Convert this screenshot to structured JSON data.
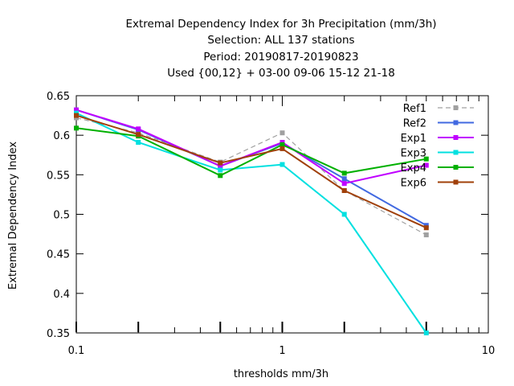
{
  "chart_data": {
    "type": "line",
    "title_lines": [
      "Extremal Dependency Index  for 3h Precipitation (mm/3h)",
      "Selection: ALL    137 stations",
      "Period: 20190817-20190823",
      "Used {00,12} + 03-00 09-06 15-12 21-18"
    ],
    "xlabel": "thresholds mm/3h",
    "ylabel": "Extremal Dependency Index",
    "x_scale": "log",
    "xlim": [
      0.1,
      10
    ],
    "ylim": [
      0.35,
      0.65
    ],
    "x_ticks": [
      0.1,
      1,
      10
    ],
    "x_tick_labels": [
      "0.1",
      "1",
      "10"
    ],
    "y_ticks": [
      0.35,
      0.4,
      0.45,
      0.5,
      0.55,
      0.6,
      0.65
    ],
    "y_tick_labels": [
      "0.35",
      "0.4",
      "0.45",
      "0.5",
      "0.55",
      "0.6",
      "0.65"
    ],
    "grid": false,
    "legend_position": "top-right",
    "x": [
      0.1,
      0.2,
      0.5,
      1,
      2,
      5
    ],
    "series": [
      {
        "name": "Ref1",
        "color": "#a0a0a0",
        "dashed": true,
        "values": [
          0.622,
          0.603,
          0.566,
          0.603,
          0.53,
          0.474
        ]
      },
      {
        "name": "Ref2",
        "color": "#4169e1",
        "dashed": false,
        "values": [
          0.632,
          0.607,
          0.561,
          0.59,
          0.545,
          0.486
        ]
      },
      {
        "name": "Exp1",
        "color": "#c000ff",
        "dashed": false,
        "values": [
          0.632,
          0.608,
          0.561,
          0.591,
          0.539,
          0.562
        ]
      },
      {
        "name": "Exp3",
        "color": "#00e0e0",
        "dashed": false,
        "values": [
          0.628,
          0.591,
          0.556,
          0.563,
          0.5,
          0.35
        ]
      },
      {
        "name": "Exp4",
        "color": "#00b000",
        "dashed": false,
        "values": [
          0.609,
          0.599,
          0.549,
          0.588,
          0.552,
          0.57
        ]
      },
      {
        "name": "Exp6",
        "color": "#a0400a",
        "dashed": false,
        "values": [
          0.625,
          0.601,
          0.565,
          0.583,
          0.53,
          0.483
        ]
      }
    ]
  }
}
